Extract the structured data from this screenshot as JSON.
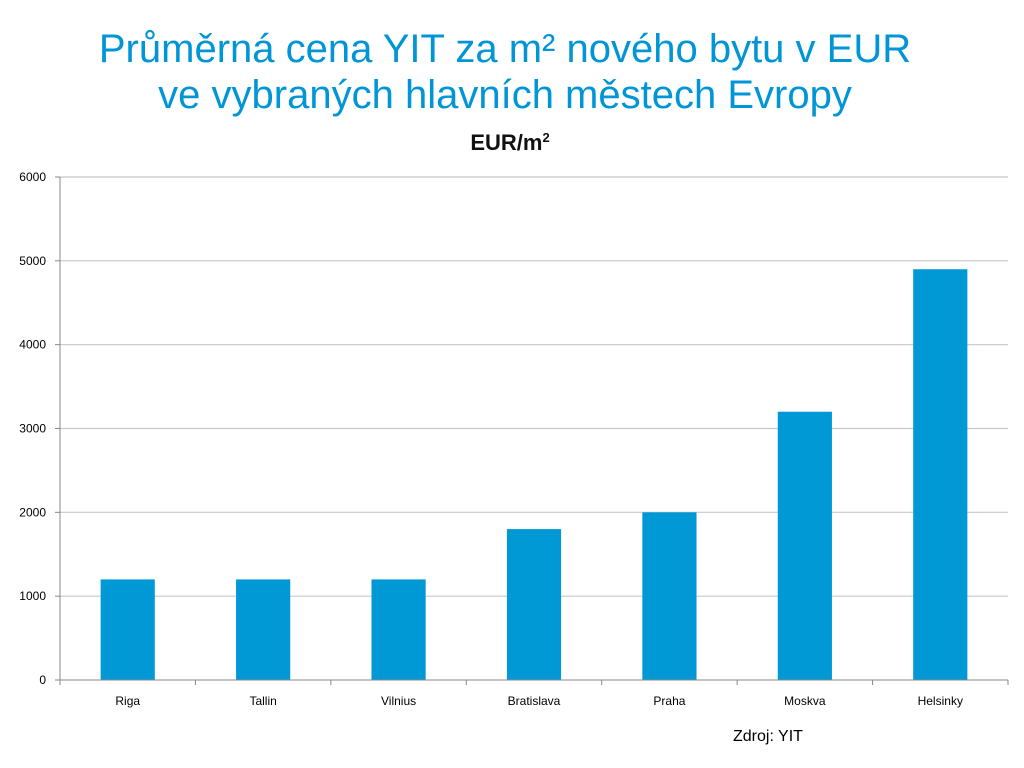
{
  "slide": {
    "title_line1": "Průměrná cena YIT za m² nového bytu v EUR",
    "title_line2": "ve vybraných hlavních městech Evropy",
    "source_note": "Zdroj: YIT"
  },
  "colors": {
    "title": "#0095D6",
    "bar": "#0099D6",
    "grid": "#C8C8C8",
    "axis": "#888888"
  },
  "chart_data": {
    "type": "bar",
    "title": "EUR/m",
    "title_superscript": "2",
    "xlabel": "",
    "ylabel": "",
    "categories": [
      "Riga",
      "Tallin",
      "Vilnius",
      "Bratislava",
      "Praha",
      "Moskva",
      "Helsinky"
    ],
    "values": [
      1200,
      1200,
      1200,
      1800,
      2000,
      3200,
      4900
    ],
    "ylim": [
      0,
      6000
    ],
    "yticks": [
      0,
      1000,
      2000,
      3000,
      4000,
      5000,
      6000
    ],
    "grid": true,
    "legend": "none"
  }
}
